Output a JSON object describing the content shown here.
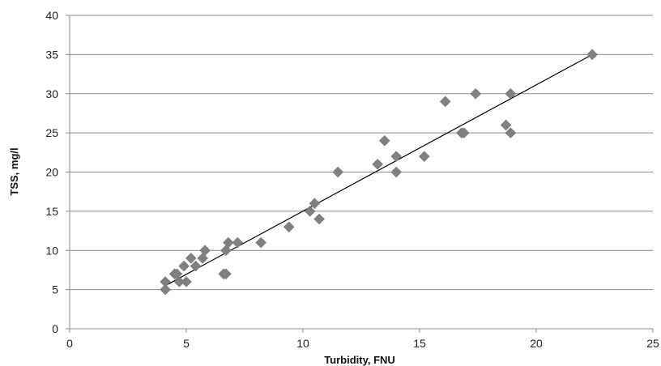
{
  "chart_data": {
    "type": "scatter",
    "title": "",
    "xlabel": "Turbidity, FNU",
    "ylabel": "TSS, mg/l",
    "xlim": [
      0,
      25
    ],
    "ylim": [
      0,
      40
    ],
    "x_ticks": [
      0,
      5,
      10,
      15,
      20,
      25
    ],
    "y_ticks": [
      0,
      5,
      10,
      15,
      20,
      25,
      30,
      35,
      40
    ],
    "grid": "horizontal",
    "legend": "none",
    "marker": "diamond",
    "marker_color": "#808080",
    "trendline": {
      "type": "linear",
      "from": [
        4.1,
        5.5
      ],
      "to": [
        22.4,
        35.0
      ],
      "color": "#000000"
    },
    "series": [
      {
        "points": [
          [
            4.1,
            6
          ],
          [
            4.1,
            5
          ],
          [
            4.5,
            7
          ],
          [
            4.6,
            7
          ],
          [
            4.7,
            6
          ],
          [
            4.9,
            8
          ],
          [
            5.0,
            6
          ],
          [
            5.2,
            9
          ],
          [
            5.4,
            8
          ],
          [
            5.7,
            9
          ],
          [
            5.8,
            10
          ],
          [
            6.6,
            7
          ],
          [
            6.7,
            7
          ],
          [
            6.7,
            10
          ],
          [
            6.8,
            11
          ],
          [
            7.2,
            11
          ],
          [
            8.2,
            11
          ],
          [
            9.4,
            13
          ],
          [
            10.3,
            15
          ],
          [
            10.5,
            16
          ],
          [
            10.7,
            14
          ],
          [
            11.5,
            20
          ],
          [
            13.2,
            21
          ],
          [
            13.5,
            24
          ],
          [
            14.0,
            22
          ],
          [
            14.0,
            20
          ],
          [
            15.2,
            22
          ],
          [
            16.1,
            29
          ],
          [
            16.8,
            25
          ],
          [
            16.9,
            25
          ],
          [
            17.4,
            30
          ],
          [
            18.7,
            26
          ],
          [
            18.9,
            30
          ],
          [
            18.9,
            25
          ],
          [
            22.4,
            35
          ]
        ]
      }
    ]
  }
}
